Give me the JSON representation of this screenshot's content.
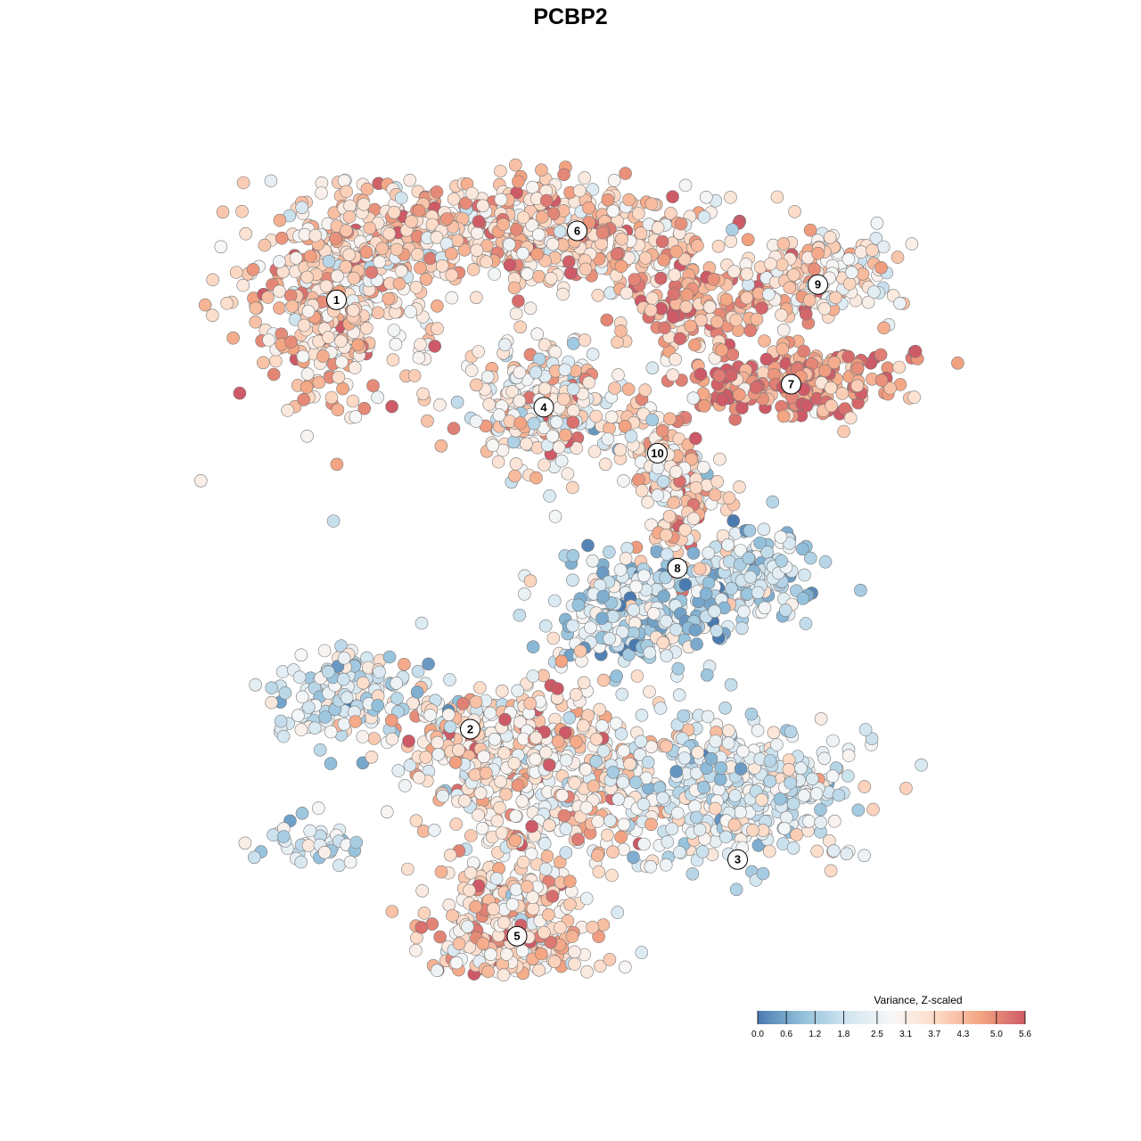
{
  "chart_data": {
    "type": "scatter",
    "title": "PCBP2",
    "embedding": "tSNE",
    "color_encoding": "Variance, Z-scaled",
    "legend": {
      "title": "Variance, Z-scaled",
      "placement": "bottom-right",
      "range": [
        0.0,
        5.6
      ],
      "tick_labels": [
        "0.0",
        "0.6",
        "1.2",
        "1.8",
        "2.5",
        "3.1",
        "3.7",
        "4.3",
        "5.0",
        "5.6"
      ],
      "tick_values": [
        0.0,
        0.6,
        1.2,
        1.8,
        2.5,
        3.1,
        3.7,
        4.3,
        5.0,
        5.6
      ],
      "colors": [
        "#4a7bb0",
        "#92c0db",
        "#d1e5f0",
        "#f7f7f7",
        "#fddbc7",
        "#f4a582",
        "#cd5a66"
      ]
    },
    "axes_visible": false,
    "grid": false,
    "xlim": [
      -50,
      50
    ],
    "ylim": [
      -50,
      50
    ],
    "clusters": [
      {
        "label": "1",
        "x": -35,
        "y": 31,
        "mean_value": 3.9
      },
      {
        "label": "2",
        "x": -15,
        "y": -25,
        "mean_value": 3.7
      },
      {
        "label": "3",
        "x": 25,
        "y": -42,
        "mean_value": 2.6
      },
      {
        "label": "4",
        "x": -4,
        "y": 17,
        "mean_value": 3.5
      },
      {
        "label": "5",
        "x": -8,
        "y": -52,
        "mean_value": 3.7
      },
      {
        "label": "6",
        "x": 1,
        "y": 40,
        "mean_value": 4.0
      },
      {
        "label": "7",
        "x": 33,
        "y": 20,
        "mean_value": 4.8
      },
      {
        "label": "8",
        "x": 16,
        "y": -4,
        "mean_value": 2.2
      },
      {
        "label": "9",
        "x": 37,
        "y": 33,
        "mean_value": 3.3
      },
      {
        "label": "10",
        "x": 13,
        "y": 11,
        "mean_value": 3.4
      }
    ]
  }
}
